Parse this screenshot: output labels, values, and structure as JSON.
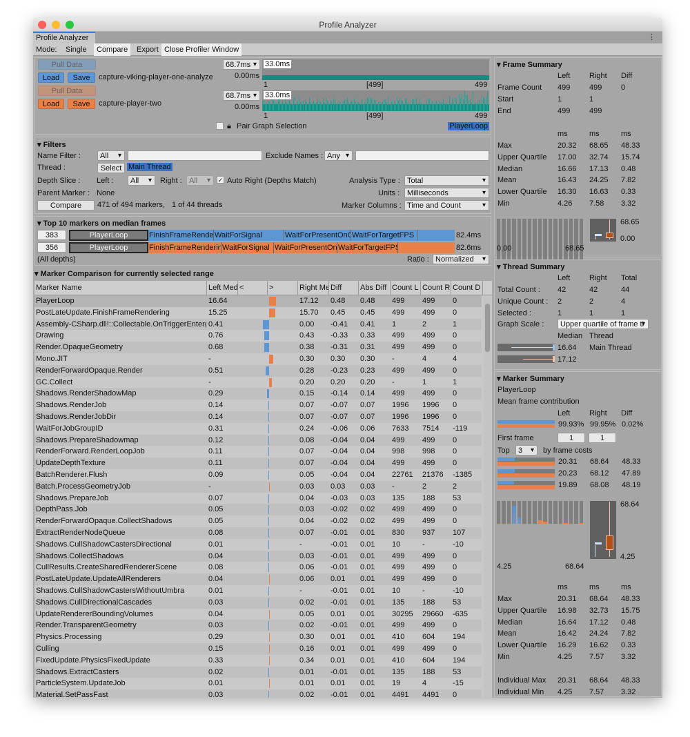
{
  "window": {
    "title": "Profile Analyzer",
    "tab": "Profile Analyzer"
  },
  "toolbar": {
    "mode_label": "Mode:",
    "single": "Single",
    "compare": "Compare",
    "export": "Export",
    "close": "Close Profiler Window"
  },
  "colors": {
    "left": "#5d96d3",
    "right": "#e8804a",
    "graph": "#1a8a80"
  },
  "data_panel": {
    "left": {
      "pull": "Pull Data",
      "load": "Load",
      "save": "Save",
      "file": "capture-viking-player-one-analyze",
      "scale": "68.7ms",
      "range": "33.0ms",
      "zero": "0.00ms",
      "start": "1",
      "mid": "[499]",
      "end": "499"
    },
    "right": {
      "pull": "Pull Data",
      "load": "Load",
      "save": "Save",
      "file": "capture-player-two",
      "scale": "68.7ms",
      "range": "33.0ms",
      "zero": "0.00ms",
      "start": "1",
      "mid": "[499]",
      "end": "499"
    },
    "pair_label": "Pair Graph Selection",
    "pair_checked": false,
    "selected_marker": "PlayerLoop"
  },
  "filters": {
    "title": "Filters",
    "name_filter_label": "Name Filter :",
    "name_filter": "All",
    "exclude_label": "Exclude Names :",
    "exclude": "Any",
    "thread_label": "Thread :",
    "select": "Select",
    "thread": "Main Thread",
    "depth_label": "Depth Slice :",
    "left_label": "Left :",
    "left": "All",
    "right_label": "Right :",
    "right": "All",
    "auto_right": "Auto Right (Depths Match)",
    "auto_right_checked": true,
    "analysis_label": "Analysis Type :",
    "analysis": "Total",
    "parent_label": "Parent Marker :",
    "parent": "None",
    "units_label": "Units :",
    "units": "Milliseconds",
    "compare": "Compare",
    "markers": "471 of 494 markers",
    "sep": ",",
    "threads": "1 of 44 threads",
    "columns_label": "Marker Columns :",
    "columns": "Time and Count"
  },
  "top10": {
    "title": "Top 10 markers on median frames",
    "left_frame": "383",
    "right_frame": "356",
    "root": "PlayerLoop",
    "left_markers": [
      "FinishFrameRendering",
      "WaitForSignal",
      "WaitForPresentOnG",
      "WaitForTargetFPS"
    ],
    "right_markers": [
      "FinishFrameRendering",
      "WaitForSignal",
      "WaitForPresentOn",
      "WaitForTargetFPS"
    ],
    "left_total": "82.4ms",
    "right_total": "82.6ms",
    "depths": "(All depths)",
    "ratio_label": "Ratio :",
    "ratio": "Normalized"
  },
  "comparison": {
    "title": "Marker Comparison for currently selected range",
    "columns": [
      "Marker Name",
      "Left Med",
      "<",
      ">",
      "Right Me",
      "Diff",
      "Abs Diff",
      "Count L",
      "Count R",
      "Count D"
    ],
    "rows": [
      [
        "PlayerLoop",
        "16.64",
        "17.12",
        "0.48",
        "0.48",
        "499",
        "499",
        "0"
      ],
      [
        "PostLateUpdate.FinishFrameRendering",
        "15.25",
        "15.70",
        "0.45",
        "0.45",
        "499",
        "499",
        "0"
      ],
      [
        "Assembly-CSharp.dll!::Collectable.OnTriggerEnter()",
        "0.41",
        "0.00",
        "-0.41",
        "0.41",
        "1",
        "2",
        "1"
      ],
      [
        "Drawing",
        "0.76",
        "0.43",
        "-0.33",
        "0.33",
        "499",
        "499",
        "0"
      ],
      [
        "Render.OpaqueGeometry",
        "0.68",
        "0.38",
        "-0.31",
        "0.31",
        "499",
        "499",
        "0"
      ],
      [
        "Mono.JIT",
        "-",
        "0.30",
        "0.30",
        "0.30",
        "-",
        "4",
        "4"
      ],
      [
        "RenderForwardOpaque.Render",
        "0.51",
        "0.28",
        "-0.23",
        "0.23",
        "499",
        "499",
        "0"
      ],
      [
        "GC.Collect",
        "-",
        "0.20",
        "0.20",
        "0.20",
        "-",
        "1",
        "1"
      ],
      [
        "Shadows.RenderShadowMap",
        "0.29",
        "0.15",
        "-0.14",
        "0.14",
        "499",
        "499",
        "0"
      ],
      [
        "Shadows.RenderJob",
        "0.14",
        "0.07",
        "-0.07",
        "0.07",
        "1996",
        "1996",
        "0"
      ],
      [
        "Shadows.RenderJobDir",
        "0.14",
        "0.07",
        "-0.07",
        "0.07",
        "1996",
        "1996",
        "0"
      ],
      [
        "WaitForJobGroupID",
        "0.31",
        "0.24",
        "-0.06",
        "0.06",
        "7633",
        "7514",
        "-119"
      ],
      [
        "Shadows.PrepareShadowmap",
        "0.12",
        "0.08",
        "-0.04",
        "0.04",
        "499",
        "499",
        "0"
      ],
      [
        "RenderForward.RenderLoopJob",
        "0.11",
        "0.07",
        "-0.04",
        "0.04",
        "998",
        "998",
        "0"
      ],
      [
        "UpdateDepthTexture",
        "0.11",
        "0.07",
        "-0.04",
        "0.04",
        "499",
        "499",
        "0"
      ],
      [
        "BatchRenderer.Flush",
        "0.09",
        "0.05",
        "-0.04",
        "0.04",
        "22761",
        "21376",
        "-1385"
      ],
      [
        "Batch.ProcessGeometryJob",
        "-",
        "0.03",
        "0.03",
        "0.03",
        "-",
        "2",
        "2"
      ],
      [
        "Shadows.PrepareJob",
        "0.07",
        "0.04",
        "-0.03",
        "0.03",
        "135",
        "188",
        "53"
      ],
      [
        "DepthPass.Job",
        "0.05",
        "0.03",
        "-0.02",
        "0.02",
        "499",
        "499",
        "0"
      ],
      [
        "RenderForwardOpaque.CollectShadows",
        "0.05",
        "0.04",
        "-0.02",
        "0.02",
        "499",
        "499",
        "0"
      ],
      [
        "ExtractRenderNodeQueue",
        "0.08",
        "0.07",
        "-0.01",
        "0.01",
        "830",
        "937",
        "107"
      ],
      [
        "Shadows.CullShadowCastersDirectional",
        "0.01",
        "-",
        "-0.01",
        "0.01",
        "10",
        "-",
        "-10"
      ],
      [
        "Shadows.CollectShadows",
        "0.04",
        "0.03",
        "-0.01",
        "0.01",
        "499",
        "499",
        "0"
      ],
      [
        "CullResults.CreateSharedRendererScene",
        "0.08",
        "0.06",
        "-0.01",
        "0.01",
        "499",
        "499",
        "0"
      ],
      [
        "PostLateUpdate.UpdateAllRenderers",
        "0.04",
        "0.06",
        "0.01",
        "0.01",
        "499",
        "499",
        "0"
      ],
      [
        "Shadows.CullShadowCastersWithoutUmbra",
        "0.01",
        "-",
        "-0.01",
        "0.01",
        "10",
        "-",
        "-10"
      ],
      [
        "Shadows.CullDirectionalCascades",
        "0.03",
        "0.02",
        "-0.01",
        "0.01",
        "135",
        "188",
        "53"
      ],
      [
        "UpdateRendererBoundingVolumes",
        "0.04",
        "0.05",
        "0.01",
        "0.01",
        "30295",
        "29660",
        "-635"
      ],
      [
        "Render.TransparentGeometry",
        "0.03",
        "0.02",
        "-0.01",
        "0.01",
        "499",
        "499",
        "0"
      ],
      [
        "Physics.Processing",
        "0.29",
        "0.30",
        "0.01",
        "0.01",
        "410",
        "604",
        "194"
      ],
      [
        "Culling",
        "0.15",
        "0.16",
        "0.01",
        "0.01",
        "499",
        "499",
        "0"
      ],
      [
        "FixedUpdate.PhysicsFixedUpdate",
        "0.33",
        "0.34",
        "0.01",
        "0.01",
        "410",
        "604",
        "194"
      ],
      [
        "Shadows.ExtractCasters",
        "0.02",
        "0.01",
        "-0.01",
        "0.01",
        "135",
        "188",
        "53"
      ],
      [
        "ParticleSystem.UpdateJob",
        "0.01",
        "0.01",
        "0.01",
        "0.01",
        "19",
        "4",
        "-15"
      ],
      [
        "Material.SetPassFast",
        "0.03",
        "0.02",
        "-0.01",
        "0.01",
        "4491",
        "4491",
        "0"
      ]
    ]
  },
  "frame_summary": {
    "title": "Frame Summary",
    "cols": [
      "Left",
      "Right",
      "Diff"
    ],
    "rows": [
      [
        "Frame Count",
        "499",
        "499",
        "0"
      ],
      [
        "Start",
        "1",
        "1",
        ""
      ],
      [
        "End",
        "499",
        "499",
        ""
      ]
    ],
    "units": [
      "ms",
      "ms",
      "ms"
    ],
    "stats": [
      [
        "Max",
        "20.32",
        "68.65",
        "48.33"
      ],
      [
        "Upper Quartile",
        "17.00",
        "32.74",
        "15.74"
      ],
      [
        "Median",
        "16.66",
        "17.13",
        "0.48"
      ],
      [
        "Mean",
        "16.43",
        "24.25",
        "7.82"
      ],
      [
        "Lower Quartile",
        "16.30",
        "16.63",
        "0.33"
      ],
      [
        "Min",
        "4.26",
        "7.58",
        "3.32"
      ]
    ],
    "hist_min": "0.00",
    "hist_max": "68.65",
    "box_max": "68.65",
    "box_min": "0.00"
  },
  "thread_summary": {
    "title": "Thread Summary",
    "cols": [
      "Left",
      "Right",
      "Total"
    ],
    "rows": [
      [
        "Total Count :",
        "42",
        "42",
        "44"
      ],
      [
        "Unique Count :",
        "2",
        "2",
        "4"
      ],
      [
        "Selected :",
        "1",
        "1",
        "1"
      ]
    ],
    "scale_label": "Graph Scale :",
    "scale": "Upper quartile of frame ti",
    "median_label": "Median",
    "thread_label": "Thread",
    "left_median": "16.64",
    "right_median": "17.12",
    "thread": "Main Thread"
  },
  "marker_summary": {
    "title": "Marker Summary",
    "marker": "PlayerLoop",
    "contribution_label": "Mean frame contribution",
    "cols": [
      "Left",
      "Right",
      "Diff"
    ],
    "contribution": [
      "99.93%",
      "99.95%",
      "0.02%"
    ],
    "left_fraction": 0.9993,
    "right_fraction": 0.9995,
    "first_frame_label": "First frame",
    "first_left": "1",
    "first_right": "1",
    "top_label": "Top",
    "top_n": "3",
    "by_label": "by frame costs",
    "top": [
      [
        "20.31",
        "68.64",
        "48.33"
      ],
      [
        "20.23",
        "68.12",
        "47.89"
      ],
      [
        "19.89",
        "68.08",
        "48.19"
      ]
    ],
    "hist_min": "4.25",
    "hist_max": "68.64",
    "box_max": "68.64",
    "box_min": "4.25",
    "units": [
      "ms",
      "ms",
      "ms"
    ],
    "stats": [
      [
        "Max",
        "20.31",
        "68.64",
        "48.33"
      ],
      [
        "Upper Quartile",
        "16.98",
        "32.73",
        "15.75"
      ],
      [
        "Median",
        "16.64",
        "17.12",
        "0.48"
      ],
      [
        "Mean",
        "16.42",
        "24.24",
        "7.82"
      ],
      [
        "Lower Quartile",
        "16.29",
        "16.62",
        "0.33"
      ],
      [
        "Min",
        "4.25",
        "7.57",
        "3.32"
      ]
    ],
    "individual": [
      [
        "Individual Max",
        "20.31",
        "68.64",
        "48.33"
      ],
      [
        "Individual Min",
        "4.25",
        "7.57",
        "3.32"
      ]
    ]
  }
}
